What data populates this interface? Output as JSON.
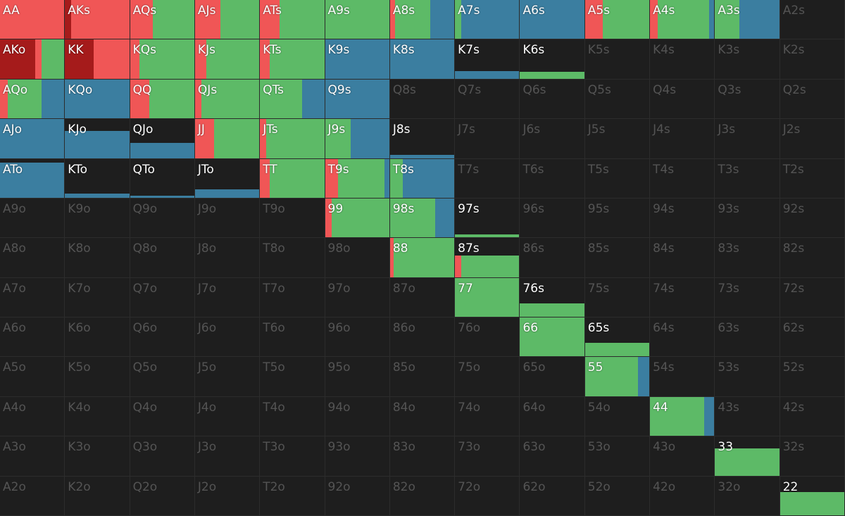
{
  "palette": [
    "#a51b1b",
    "#f05656",
    "#5dba67",
    "#3b7ea0"
  ],
  "grid": {
    "rows": [
      [
        {
          "hand": "AA",
          "fill": 100,
          "mix": [
            0,
            100,
            0,
            0
          ]
        },
        {
          "hand": "AKs",
          "fill": 100,
          "mix": [
            10,
            90,
            0,
            0
          ]
        },
        {
          "hand": "AQs",
          "fill": 100,
          "mix": [
            0,
            35,
            65,
            0
          ]
        },
        {
          "hand": "AJs",
          "fill": 100,
          "mix": [
            0,
            40,
            60,
            0
          ]
        },
        {
          "hand": "ATs",
          "fill": 100,
          "mix": [
            0,
            30,
            70,
            0
          ]
        },
        {
          "hand": "A9s",
          "fill": 100,
          "mix": [
            0,
            0,
            100,
            0
          ]
        },
        {
          "hand": "A8s",
          "fill": 100,
          "mix": [
            0,
            8,
            55,
            37
          ]
        },
        {
          "hand": "A7s",
          "fill": 100,
          "mix": [
            0,
            0,
            10,
            90
          ]
        },
        {
          "hand": "A6s",
          "fill": 100,
          "mix": [
            0,
            0,
            0,
            100
          ]
        },
        {
          "hand": "A5s",
          "fill": 100,
          "mix": [
            0,
            28,
            72,
            0
          ]
        },
        {
          "hand": "A4s",
          "fill": 100,
          "mix": [
            0,
            12,
            80,
            8
          ]
        },
        {
          "hand": "A3s",
          "fill": 100,
          "mix": [
            0,
            0,
            38,
            62
          ]
        },
        {
          "hand": "A2s"
        }
      ],
      [
        {
          "hand": "AKo",
          "fill": 100,
          "mix": [
            55,
            10,
            35,
            0
          ]
        },
        {
          "hand": "KK",
          "fill": 100,
          "mix": [
            45,
            55,
            0,
            0
          ]
        },
        {
          "hand": "KQs",
          "fill": 100,
          "mix": [
            0,
            15,
            85,
            0
          ]
        },
        {
          "hand": "KJs",
          "fill": 100,
          "mix": [
            0,
            18,
            82,
            0
          ]
        },
        {
          "hand": "KTs",
          "fill": 100,
          "mix": [
            0,
            15,
            85,
            0
          ]
        },
        {
          "hand": "K9s",
          "fill": 100,
          "mix": [
            0,
            0,
            0,
            100
          ]
        },
        {
          "hand": "K8s",
          "fill": 100,
          "mix": [
            0,
            0,
            0,
            100
          ]
        },
        {
          "hand": "K7s",
          "fill": 20,
          "mix": [
            0,
            0,
            0,
            100
          ]
        },
        {
          "hand": "K6s",
          "fill": 18,
          "mix": [
            0,
            0,
            100,
            0
          ]
        },
        {
          "hand": "K5s"
        },
        {
          "hand": "K4s"
        },
        {
          "hand": "K3s"
        },
        {
          "hand": "K2s"
        }
      ],
      [
        {
          "hand": "AQo",
          "fill": 100,
          "mix": [
            0,
            12,
            53,
            35
          ]
        },
        {
          "hand": "KQo",
          "fill": 100,
          "mix": [
            0,
            0,
            0,
            100
          ]
        },
        {
          "hand": "QQ",
          "fill": 100,
          "mix": [
            0,
            30,
            70,
            0
          ]
        },
        {
          "hand": "QJs",
          "fill": 100,
          "mix": [
            0,
            10,
            90,
            0
          ]
        },
        {
          "hand": "QTs",
          "fill": 100,
          "mix": [
            0,
            0,
            65,
            35
          ]
        },
        {
          "hand": "Q9s",
          "fill": 100,
          "mix": [
            0,
            0,
            0,
            100
          ]
        },
        {
          "hand": "Q8s"
        },
        {
          "hand": "Q7s"
        },
        {
          "hand": "Q6s"
        },
        {
          "hand": "Q5s"
        },
        {
          "hand": "Q4s"
        },
        {
          "hand": "Q3s"
        },
        {
          "hand": "Q2s"
        }
      ],
      [
        {
          "hand": "AJo",
          "fill": 100,
          "mix": [
            0,
            0,
            0,
            100
          ]
        },
        {
          "hand": "KJo",
          "fill": 70,
          "mix": [
            0,
            0,
            0,
            100
          ]
        },
        {
          "hand": "QJo",
          "fill": 38,
          "mix": [
            0,
            0,
            0,
            100
          ]
        },
        {
          "hand": "JJ",
          "fill": 100,
          "mix": [
            0,
            30,
            70,
            0
          ]
        },
        {
          "hand": "JTs",
          "fill": 100,
          "mix": [
            0,
            10,
            90,
            0
          ]
        },
        {
          "hand": "J9s",
          "fill": 100,
          "mix": [
            0,
            0,
            40,
            60
          ]
        },
        {
          "hand": "J8s",
          "fill": 8,
          "mix": [
            0,
            0,
            0,
            100
          ]
        },
        {
          "hand": "J7s"
        },
        {
          "hand": "J6s"
        },
        {
          "hand": "J5s"
        },
        {
          "hand": "J4s"
        },
        {
          "hand": "J3s"
        },
        {
          "hand": "J2s"
        }
      ],
      [
        {
          "hand": "ATo",
          "fill": 90,
          "mix": [
            0,
            0,
            0,
            100
          ]
        },
        {
          "hand": "KTo",
          "fill": 10,
          "mix": [
            0,
            0,
            0,
            100
          ]
        },
        {
          "hand": "QTo",
          "fill": 5,
          "mix": [
            0,
            0,
            0,
            100
          ]
        },
        {
          "hand": "JTo",
          "fill": 22,
          "mix": [
            0,
            0,
            0,
            100
          ]
        },
        {
          "hand": "TT",
          "fill": 100,
          "mix": [
            0,
            15,
            85,
            0
          ]
        },
        {
          "hand": "T9s",
          "fill": 100,
          "mix": [
            0,
            20,
            73,
            7
          ]
        },
        {
          "hand": "T8s",
          "fill": 100,
          "mix": [
            0,
            0,
            20,
            80
          ]
        },
        {
          "hand": "T7s"
        },
        {
          "hand": "T6s"
        },
        {
          "hand": "T5s"
        },
        {
          "hand": "T4s"
        },
        {
          "hand": "T3s"
        },
        {
          "hand": "T2s"
        }
      ],
      [
        {
          "hand": "A9o"
        },
        {
          "hand": "K9o"
        },
        {
          "hand": "Q9o"
        },
        {
          "hand": "J9o"
        },
        {
          "hand": "T9o"
        },
        {
          "hand": "99",
          "fill": 100,
          "mix": [
            0,
            10,
            90,
            0
          ]
        },
        {
          "hand": "98s",
          "fill": 100,
          "mix": [
            0,
            0,
            70,
            30
          ]
        },
        {
          "hand": "97s",
          "fill": 8,
          "mix": [
            0,
            0,
            100,
            0
          ]
        },
        {
          "hand": "96s"
        },
        {
          "hand": "95s"
        },
        {
          "hand": "94s"
        },
        {
          "hand": "93s"
        },
        {
          "hand": "92s"
        }
      ],
      [
        {
          "hand": "A8o"
        },
        {
          "hand": "K8o"
        },
        {
          "hand": "Q8o"
        },
        {
          "hand": "J8o"
        },
        {
          "hand": "T8o"
        },
        {
          "hand": "98o"
        },
        {
          "hand": "88",
          "fill": 100,
          "mix": [
            0,
            6,
            94,
            0
          ]
        },
        {
          "hand": "87s",
          "fill": 55,
          "mix": [
            0,
            10,
            90,
            0
          ]
        },
        {
          "hand": "86s"
        },
        {
          "hand": "85s"
        },
        {
          "hand": "84s"
        },
        {
          "hand": "83s"
        },
        {
          "hand": "82s"
        }
      ],
      [
        {
          "hand": "A7o"
        },
        {
          "hand": "K7o"
        },
        {
          "hand": "Q7o"
        },
        {
          "hand": "J7o"
        },
        {
          "hand": "T7o"
        },
        {
          "hand": "97o"
        },
        {
          "hand": "87o"
        },
        {
          "hand": "77",
          "fill": 100,
          "mix": [
            0,
            0,
            100,
            0
          ]
        },
        {
          "hand": "76s",
          "fill": 35,
          "mix": [
            0,
            0,
            100,
            0
          ]
        },
        {
          "hand": "75s"
        },
        {
          "hand": "74s"
        },
        {
          "hand": "73s"
        },
        {
          "hand": "72s"
        }
      ],
      [
        {
          "hand": "A6o"
        },
        {
          "hand": "K6o"
        },
        {
          "hand": "Q6o"
        },
        {
          "hand": "J6o"
        },
        {
          "hand": "T6o"
        },
        {
          "hand": "96o"
        },
        {
          "hand": "86o"
        },
        {
          "hand": "76o"
        },
        {
          "hand": "66",
          "fill": 100,
          "mix": [
            0,
            0,
            100,
            0
          ]
        },
        {
          "hand": "65s",
          "fill": 35,
          "mix": [
            0,
            0,
            100,
            0
          ]
        },
        {
          "hand": "64s"
        },
        {
          "hand": "63s"
        },
        {
          "hand": "62s"
        }
      ],
      [
        {
          "hand": "A5o"
        },
        {
          "hand": "K5o"
        },
        {
          "hand": "Q5o"
        },
        {
          "hand": "J5o"
        },
        {
          "hand": "T5o"
        },
        {
          "hand": "95o"
        },
        {
          "hand": "85o"
        },
        {
          "hand": "75o"
        },
        {
          "hand": "65o"
        },
        {
          "hand": "55",
          "fill": 100,
          "mix": [
            0,
            0,
            82,
            18
          ]
        },
        {
          "hand": "54s"
        },
        {
          "hand": "53s"
        },
        {
          "hand": "52s"
        }
      ],
      [
        {
          "hand": "A4o"
        },
        {
          "hand": "K4o"
        },
        {
          "hand": "Q4o"
        },
        {
          "hand": "J4o"
        },
        {
          "hand": "T4o"
        },
        {
          "hand": "94o"
        },
        {
          "hand": "84o"
        },
        {
          "hand": "74o"
        },
        {
          "hand": "64o"
        },
        {
          "hand": "54o"
        },
        {
          "hand": "44",
          "fill": 100,
          "mix": [
            0,
            0,
            84,
            16
          ]
        },
        {
          "hand": "43s"
        },
        {
          "hand": "42s"
        }
      ],
      [
        {
          "hand": "A3o"
        },
        {
          "hand": "K3o"
        },
        {
          "hand": "Q3o"
        },
        {
          "hand": "J3o"
        },
        {
          "hand": "T3o"
        },
        {
          "hand": "93o"
        },
        {
          "hand": "83o"
        },
        {
          "hand": "73o"
        },
        {
          "hand": "63o"
        },
        {
          "hand": "53o"
        },
        {
          "hand": "43o"
        },
        {
          "hand": "33",
          "fill": 70,
          "mix": [
            0,
            0,
            100,
            0
          ]
        },
        {
          "hand": "32s"
        }
      ],
      [
        {
          "hand": "A2o"
        },
        {
          "hand": "K2o"
        },
        {
          "hand": "Q2o"
        },
        {
          "hand": "J2o"
        },
        {
          "hand": "T2o"
        },
        {
          "hand": "92o"
        },
        {
          "hand": "82o"
        },
        {
          "hand": "72o"
        },
        {
          "hand": "62o"
        },
        {
          "hand": "52o"
        },
        {
          "hand": "42o"
        },
        {
          "hand": "32o"
        },
        {
          "hand": "22",
          "fill": 60,
          "mix": [
            0,
            0,
            100,
            0
          ]
        }
      ]
    ]
  }
}
